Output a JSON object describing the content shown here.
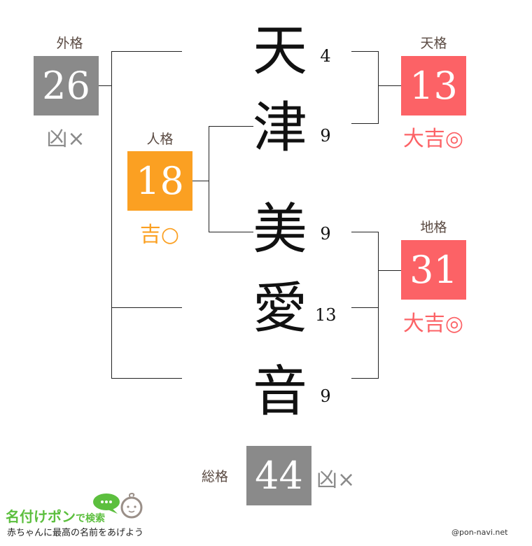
{
  "colors": {
    "bad": "#8a8a8a",
    "good": "#fba022",
    "great": "#fc6266"
  },
  "characters": [
    {
      "char": "天",
      "strokes": "4"
    },
    {
      "char": "津",
      "strokes": "9"
    },
    {
      "char": "美",
      "strokes": "9"
    },
    {
      "char": "愛",
      "strokes": "13"
    },
    {
      "char": "音",
      "strokes": "9"
    }
  ],
  "gaikaku": {
    "label": "外格",
    "value": "26",
    "fortune": "凶×"
  },
  "jinkaku": {
    "label": "人格",
    "value": "18",
    "fortune": "吉○"
  },
  "tenkaku": {
    "label": "天格",
    "value": "13",
    "fortune": "大吉◎"
  },
  "chikaku": {
    "label": "地格",
    "value": "31",
    "fortune": "大吉◎"
  },
  "soukaku": {
    "label": "総格",
    "value": "44",
    "fortune": "凶×"
  },
  "footer": {
    "logo_main": "名付けポン",
    "logo_sub": "で検索",
    "tagline": "赤ちゃんに最高の名前をあげよう",
    "credit": "@pon-navi.net"
  }
}
